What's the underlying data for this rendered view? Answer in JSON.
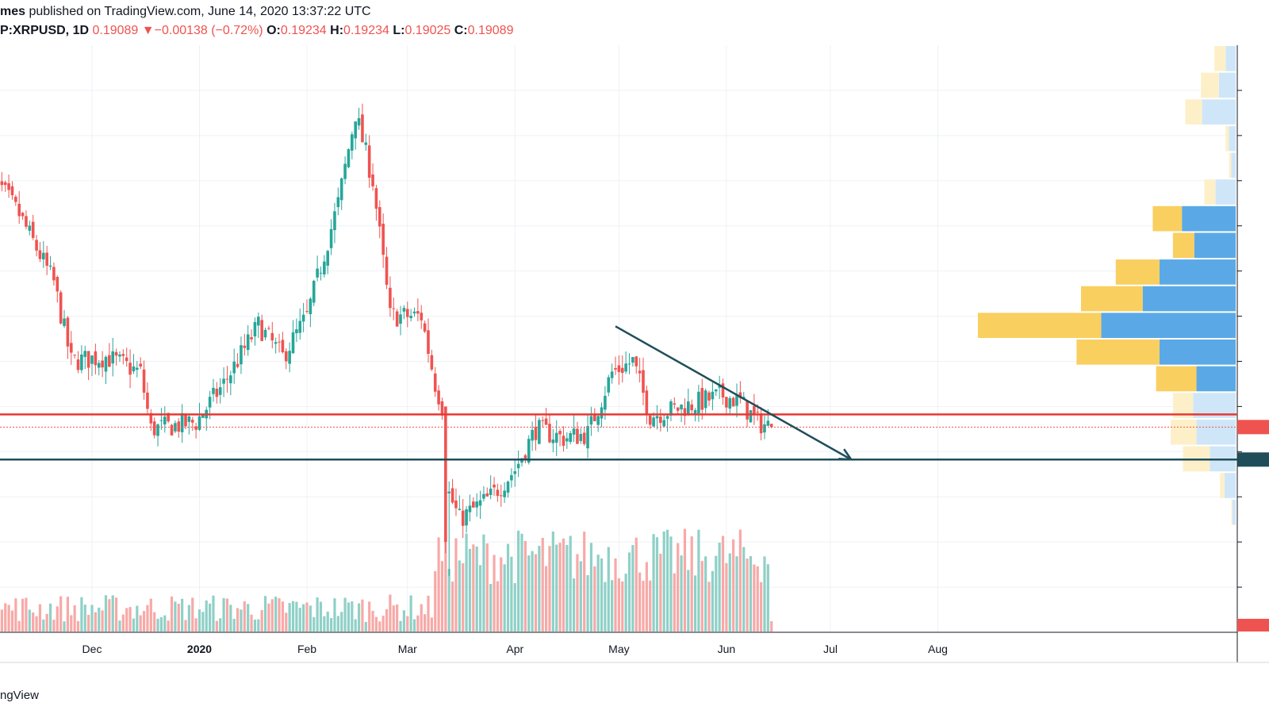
{
  "header": {
    "publisher_prefix": "mes",
    "published_text": "published on TradingView.com, June 14, 2020 13:37:22 UTC"
  },
  "ohlc_line": {
    "symbol": "P:XRPUSD, 1D",
    "price": "0.19089",
    "arrow": "▼",
    "change": "−0.00138 (−0.72%)",
    "o_label": "O:",
    "o_value": "0.19234",
    "h_label": "H:",
    "h_value": "0.19234",
    "l_label": "L:",
    "l_value": "0.19025",
    "c_label": "C:",
    "c_value": "0.19089"
  },
  "footer": {
    "brand": "ngView"
  },
  "colors": {
    "up": "#26a69a",
    "down": "#ef5350",
    "vol_up": "#8fd0c7",
    "vol_down": "#f7a9a7",
    "resistance": "#e53935",
    "support": "#1f4e5a",
    "vp_up": "#5aa9e6",
    "vp_down": "#f9cf5f",
    "vp_up_light": "#cfe6f8",
    "vp_down_light": "#fdf0c9",
    "grid": "#eef1f5"
  },
  "chart_data": {
    "type": "candlestick",
    "symbol": "XRPUSD",
    "timeframe": "1D",
    "x_tick_labels": [
      "Dec",
      "2020",
      "Feb",
      "Mar",
      "Apr",
      "May",
      "Jun",
      "Jul",
      "Aug"
    ],
    "ylim": [
      0.1,
      0.36
    ],
    "anchors": [
      {
        "date": "2019-11-01",
        "close": 0.305
      },
      {
        "date": "2019-11-10",
        "close": 0.285
      },
      {
        "date": "2019-11-20",
        "close": 0.255
      },
      {
        "date": "2019-11-25",
        "close": 0.22
      },
      {
        "date": "2019-12-05",
        "close": 0.222
      },
      {
        "date": "2019-12-15",
        "close": 0.215
      },
      {
        "date": "2019-12-18",
        "close": 0.19
      },
      {
        "date": "2019-12-31",
        "close": 0.193
      },
      {
        "date": "2020-01-08",
        "close": 0.21
      },
      {
        "date": "2020-01-18",
        "close": 0.236
      },
      {
        "date": "2020-01-25",
        "close": 0.222
      },
      {
        "date": "2020-02-01",
        "close": 0.24
      },
      {
        "date": "2020-02-10",
        "close": 0.29
      },
      {
        "date": "2020-02-15",
        "close": 0.33
      },
      {
        "date": "2020-02-20",
        "close": 0.3
      },
      {
        "date": "2020-02-25",
        "close": 0.24
      },
      {
        "date": "2020-03-05",
        "close": 0.24
      },
      {
        "date": "2020-03-09",
        "close": 0.21
      },
      {
        "date": "2020-03-11",
        "close": 0.2
      },
      {
        "date": "2020-03-12",
        "close": 0.165
      },
      {
        "date": "2020-03-16",
        "close": 0.15
      },
      {
        "date": "2020-03-25",
        "close": 0.16
      },
      {
        "date": "2020-04-01",
        "close": 0.172
      },
      {
        "date": "2020-04-07",
        "close": 0.19
      },
      {
        "date": "2020-04-15",
        "close": 0.186
      },
      {
        "date": "2020-04-22",
        "close": 0.188
      },
      {
        "date": "2020-04-29",
        "close": 0.215
      },
      {
        "date": "2020-05-05",
        "close": 0.22
      },
      {
        "date": "2020-05-10",
        "close": 0.196
      },
      {
        "date": "2020-05-20",
        "close": 0.2
      },
      {
        "date": "2020-05-31",
        "close": 0.205
      },
      {
        "date": "2020-06-05",
        "close": 0.202
      },
      {
        "date": "2020-06-10",
        "close": 0.193
      },
      {
        "date": "2020-06-14",
        "close": 0.19089
      }
    ],
    "volume_note": "daily volume histogram along bottom",
    "annotations": {
      "resistance_line": 0.1965,
      "support_line": 0.1765,
      "last_price_line": 0.19089,
      "descending_trendline": {
        "from": [
          "2020-04-30",
          0.2355
        ],
        "to": [
          "2020-07-07",
          0.1765
        ],
        "arrow": true
      }
    },
    "volume_profile": [
      {
        "up": 0.9,
        "down": 1.0,
        "highlighted": false
      },
      {
        "up": 1.5,
        "down": 1.6,
        "highlighted": false
      },
      {
        "up": 3.0,
        "down": 1.5,
        "highlighted": false
      },
      {
        "up": 0.6,
        "down": 0.3,
        "highlighted": false
      },
      {
        "up": 0.4,
        "down": 0.2,
        "highlighted": false
      },
      {
        "up": 1.8,
        "down": 1.0,
        "highlighted": false
      },
      {
        "up": 4.8,
        "down": 2.6,
        "highlighted": true
      },
      {
        "up": 3.7,
        "down": 1.9,
        "highlighted": true
      },
      {
        "up": 6.8,
        "down": 3.9,
        "highlighted": true
      },
      {
        "up": 8.3,
        "down": 5.5,
        "highlighted": true
      },
      {
        "up": 12.0,
        "down": 11.0,
        "highlighted": true
      },
      {
        "up": 6.8,
        "down": 7.4,
        "highlighted": true
      },
      {
        "up": 3.5,
        "down": 3.6,
        "highlighted": true
      },
      {
        "up": 3.8,
        "down": 1.8,
        "highlighted": false
      },
      {
        "up": 3.5,
        "down": 2.3,
        "highlighted": false
      },
      {
        "up": 2.3,
        "down": 2.4,
        "highlighted": false
      },
      {
        "up": 1.0,
        "down": 0.4,
        "highlighted": false
      },
      {
        "up": 0.3,
        "down": 0.1,
        "highlighted": false
      }
    ]
  }
}
